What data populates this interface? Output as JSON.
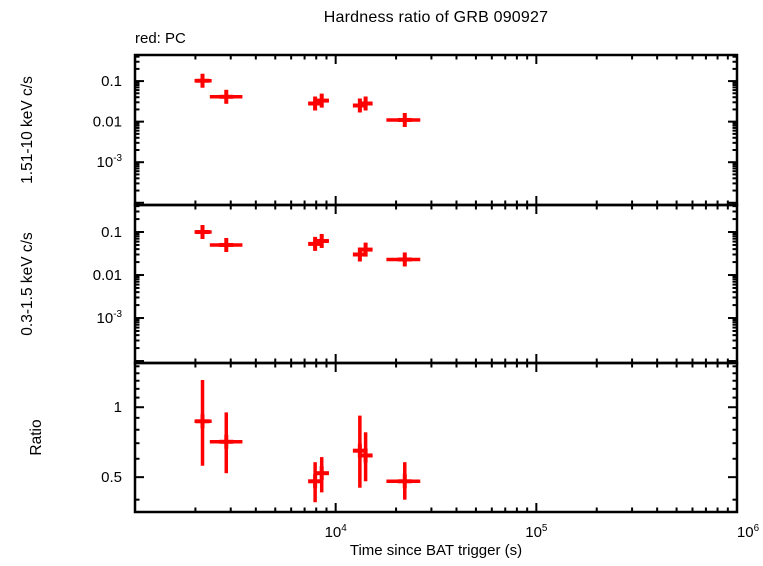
{
  "title": "Hardness ratio of GRB 090927",
  "annotation": "red: PC",
  "x_axis_label": "Time since BAT trigger (s)",
  "colors": {
    "data": "#ff0000",
    "axis": "#000000",
    "background": "#ffffff"
  },
  "chart_data": {
    "type": "scatter",
    "title": "Hardness ratio of GRB 090927",
    "annotation": "red: PC",
    "xlabel": "Time since BAT trigger (s)",
    "xscale": "log",
    "xlim": [
      1000,
      1000000
    ],
    "x_tick_labels": [
      {
        "value": 10000,
        "label": "10",
        "exp": "4",
        "dx": 0
      },
      {
        "value": 100000,
        "label": "10",
        "exp": "5",
        "dx": 0
      },
      {
        "value": 1000000,
        "label": "10",
        "exp": "6",
        "dx": 11
      }
    ],
    "marker": "plus",
    "color": "#ff0000",
    "grid": false,
    "x": [
      2170,
      2850,
      7900,
      8520,
      13200,
      14100,
      22100
    ],
    "x_err_lo": [
      1980,
      2360,
      7360,
      8050,
      12600,
      13100,
      17900
    ],
    "x_err_hi": [
      2410,
      3430,
      8500,
      9260,
      14200,
      15200,
      26400
    ],
    "panels": [
      {
        "name": "hard-band-rate",
        "ylabel": "1.51-10 keV c/s",
        "yscale": "log",
        "ylim": [
          8.8e-05,
          0.44
        ],
        "yticks": [
          {
            "value": 0.1,
            "label": "0.1",
            "exp": null
          },
          {
            "value": 0.01,
            "label": "0.01",
            "exp": null
          },
          {
            "value": 0.001,
            "label": "10",
            "exp": "-3"
          }
        ],
        "y": [
          0.102,
          0.041,
          0.028,
          0.033,
          0.025,
          0.028,
          0.011
        ],
        "y_lo": [
          0.072,
          0.029,
          0.02,
          0.024,
          0.018,
          0.021,
          0.0078
        ],
        "y_hi": [
          0.148,
          0.057,
          0.038,
          0.045,
          0.034,
          0.037,
          0.014
        ]
      },
      {
        "name": "soft-band-rate",
        "ylabel": "0.3-1.5 keV c/s",
        "yscale": "log",
        "ylim": [
          9e-05,
          0.425
        ],
        "yticks": [
          {
            "value": 0.1,
            "label": "0.1",
            "exp": null
          },
          {
            "value": 0.01,
            "label": "0.01",
            "exp": null
          },
          {
            "value": 0.001,
            "label": "10",
            "exp": "-3"
          }
        ],
        "y": [
          0.1,
          0.05,
          0.053,
          0.062,
          0.03,
          0.039,
          0.023
        ],
        "y_lo": [
          0.073,
          0.038,
          0.042,
          0.049,
          0.022,
          0.03,
          0.018
        ],
        "y_hi": [
          0.145,
          0.064,
          0.066,
          0.077,
          0.042,
          0.05,
          0.029
        ]
      },
      {
        "name": "hardness-ratio",
        "ylabel": "Ratio",
        "yscale": "log",
        "ylim": [
          0.354,
          1.55
        ],
        "yticks": [
          {
            "value": 1,
            "label": "1",
            "exp": null
          },
          {
            "value": 0.5,
            "label": "0.5",
            "exp": null
          }
        ],
        "yminor": [
          0.4,
          0.6,
          0.7,
          0.8,
          0.9,
          1.1,
          1.2,
          1.3,
          1.4,
          1.5
        ],
        "y": [
          0.87,
          0.71,
          0.48,
          0.52,
          0.65,
          0.62,
          0.48
        ],
        "y_lo": [
          0.56,
          0.52,
          0.39,
          0.43,
          0.45,
          0.48,
          0.4
        ],
        "y_hi": [
          1.31,
          0.95,
          0.58,
          0.61,
          0.92,
          0.78,
          0.58
        ]
      }
    ]
  }
}
